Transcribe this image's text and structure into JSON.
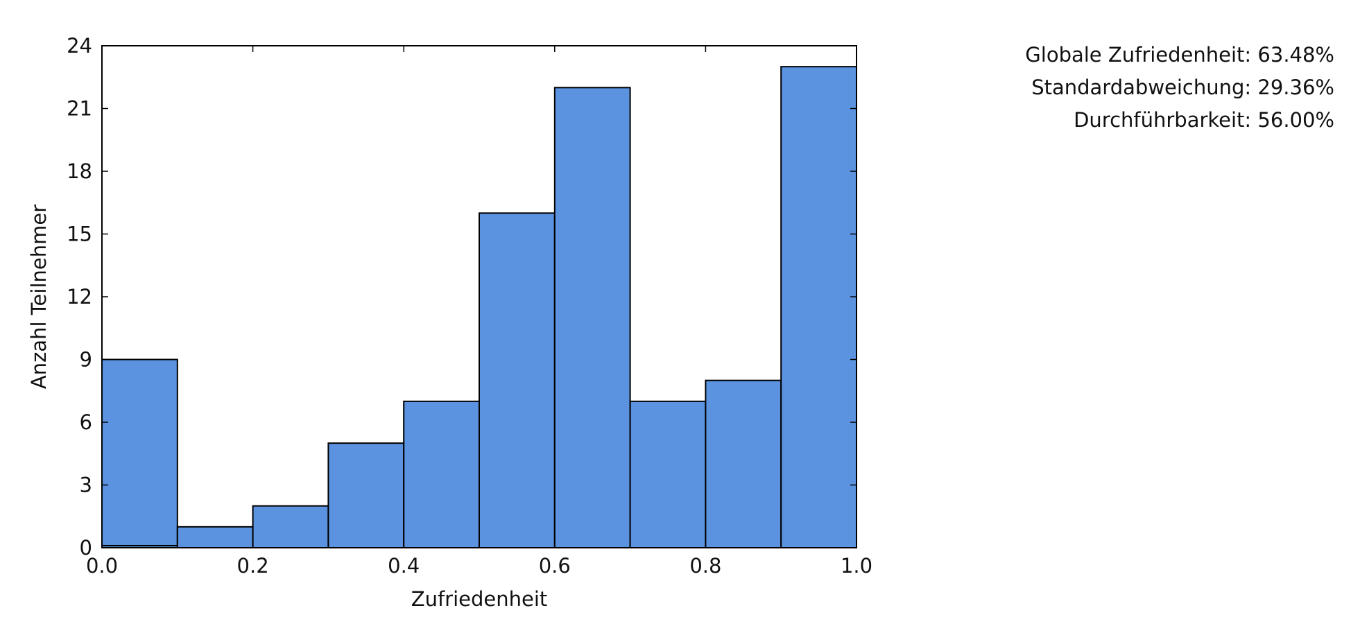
{
  "chart_data": {
    "type": "bar",
    "histogram": true,
    "bin_edges": [
      0.0,
      0.1,
      0.2,
      0.3,
      0.4,
      0.5,
      0.6,
      0.7,
      0.8,
      0.9,
      1.0
    ],
    "values": [
      9,
      1,
      2,
      5,
      7,
      16,
      22,
      7,
      8,
      23
    ],
    "extra_bars": [
      {
        "x0": 0.0,
        "x1": 0.1,
        "value": 0.1
      }
    ],
    "xlabel": "Zufriedenheit",
    "ylabel": "Anzahl Teilnehmer",
    "xlim": [
      0.0,
      1.0
    ],
    "ylim": [
      0,
      24
    ],
    "xticks": [
      "0.0",
      "0.2",
      "0.4",
      "0.6",
      "0.8",
      "1.0"
    ],
    "yticks": [
      "0",
      "3",
      "6",
      "9",
      "12",
      "15",
      "18",
      "21",
      "24"
    ],
    "grid": false,
    "bar_color": "#5b93e0",
    "edge_color": "#000000"
  },
  "stats": [
    "Globale Zufriedenheit: 63.48%",
    "Standardabweichung: 29.36%",
    "Durchführbarkeit: 56.00%"
  ]
}
